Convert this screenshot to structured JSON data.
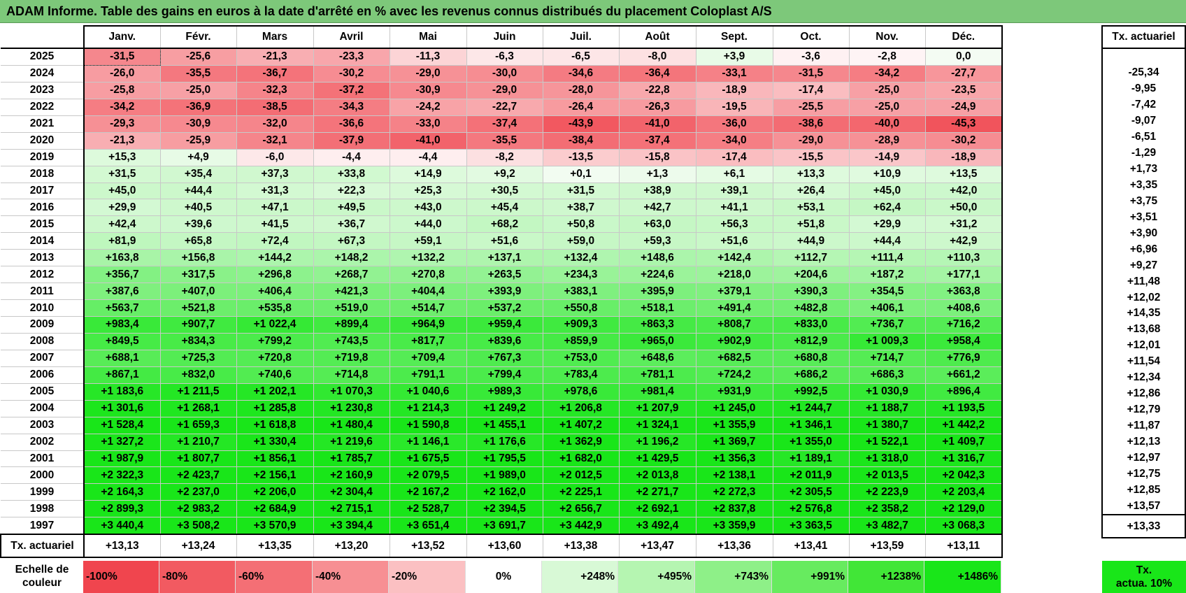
{
  "title": "ADAM Informe. Table des gains en euros à la date d'arrêté en % avec les revenus connus distribués du placement Coloplast A/S",
  "months": [
    "Janv.",
    "Févr.",
    "Mars",
    "Avril",
    "Mai",
    "Juin",
    "Juil.",
    "Août",
    "Sept.",
    "Oct.",
    "Nov.",
    "Déc."
  ],
  "side_header": "Tx. actuariel",
  "rows": [
    {
      "year": "2025",
      "values": [
        "-31,5",
        "-25,6",
        "-21,3",
        "-23,3",
        "-11,3",
        "-6,3",
        "-6,5",
        "-8,0",
        "+3,9",
        "-3,6",
        "-2,8",
        "0,0"
      ],
      "rate": ""
    },
    {
      "year": "2024",
      "values": [
        "-26,0",
        "-35,5",
        "-36,7",
        "-30,2",
        "-29,0",
        "-30,0",
        "-34,6",
        "-36,4",
        "-33,1",
        "-31,5",
        "-34,2",
        "-27,7"
      ],
      "rate": "-25,34"
    },
    {
      "year": "2023",
      "values": [
        "-25,8",
        "-25,0",
        "-32,3",
        "-37,2",
        "-30,9",
        "-29,0",
        "-28,0",
        "-22,8",
        "-18,9",
        "-17,4",
        "-25,0",
        "-23,5"
      ],
      "rate": "-9,95"
    },
    {
      "year": "2022",
      "values": [
        "-34,2",
        "-36,9",
        "-38,5",
        "-34,3",
        "-24,2",
        "-22,7",
        "-26,4",
        "-26,3",
        "-19,5",
        "-25,5",
        "-25,0",
        "-24,9"
      ],
      "rate": "-7,42"
    },
    {
      "year": "2021",
      "values": [
        "-29,3",
        "-30,9",
        "-32,0",
        "-36,6",
        "-33,0",
        "-37,4",
        "-43,9",
        "-41,0",
        "-36,0",
        "-38,6",
        "-40,0",
        "-45,3"
      ],
      "rate": "-9,07"
    },
    {
      "year": "2020",
      "values": [
        "-21,3",
        "-25,9",
        "-32,1",
        "-37,9",
        "-41,0",
        "-35,5",
        "-38,4",
        "-37,4",
        "-34,0",
        "-29,0",
        "-28,9",
        "-30,2"
      ],
      "rate": "-6,51"
    },
    {
      "year": "2019",
      "values": [
        "+15,3",
        "+4,9",
        "-6,0",
        "-4,4",
        "-4,4",
        "-8,2",
        "-13,5",
        "-15,8",
        "-17,4",
        "-15,5",
        "-14,9",
        "-18,9"
      ],
      "rate": "-1,29"
    },
    {
      "year": "2018",
      "values": [
        "+31,5",
        "+35,4",
        "+37,3",
        "+33,8",
        "+14,9",
        "+9,2",
        "+0,1",
        "+1,3",
        "+6,1",
        "+13,3",
        "+10,9",
        "+13,5"
      ],
      "rate": "+1,73"
    },
    {
      "year": "2017",
      "values": [
        "+45,0",
        "+44,4",
        "+31,3",
        "+22,3",
        "+25,3",
        "+30,5",
        "+31,5",
        "+38,9",
        "+39,1",
        "+26,4",
        "+45,0",
        "+42,0"
      ],
      "rate": "+3,35"
    },
    {
      "year": "2016",
      "values": [
        "+29,9",
        "+40,5",
        "+47,1",
        "+49,5",
        "+43,0",
        "+45,4",
        "+38,7",
        "+42,7",
        "+41,1",
        "+53,1",
        "+62,4",
        "+50,0"
      ],
      "rate": "+3,75"
    },
    {
      "year": "2015",
      "values": [
        "+42,4",
        "+39,6",
        "+41,5",
        "+36,7",
        "+44,0",
        "+68,2",
        "+50,8",
        "+63,0",
        "+56,3",
        "+51,8",
        "+29,9",
        "+31,2"
      ],
      "rate": "+3,51"
    },
    {
      "year": "2014",
      "values": [
        "+81,9",
        "+65,8",
        "+72,4",
        "+67,3",
        "+59,1",
        "+51,6",
        "+59,0",
        "+59,3",
        "+51,6",
        "+44,9",
        "+44,4",
        "+42,9"
      ],
      "rate": "+3,90"
    },
    {
      "year": "2013",
      "values": [
        "+163,8",
        "+156,8",
        "+144,2",
        "+148,2",
        "+132,2",
        "+137,1",
        "+132,4",
        "+148,6",
        "+142,4",
        "+112,7",
        "+111,4",
        "+110,3"
      ],
      "rate": "+6,96"
    },
    {
      "year": "2012",
      "values": [
        "+356,7",
        "+317,5",
        "+296,8",
        "+268,7",
        "+270,8",
        "+263,5",
        "+234,3",
        "+224,6",
        "+218,0",
        "+204,6",
        "+187,2",
        "+177,1"
      ],
      "rate": "+9,27"
    },
    {
      "year": "2011",
      "values": [
        "+387,6",
        "+407,0",
        "+406,4",
        "+421,3",
        "+404,4",
        "+393,9",
        "+383,1",
        "+395,9",
        "+379,1",
        "+390,3",
        "+354,5",
        "+363,8"
      ],
      "rate": "+11,48"
    },
    {
      "year": "2010",
      "values": [
        "+563,7",
        "+521,8",
        "+535,8",
        "+519,0",
        "+514,7",
        "+537,2",
        "+550,8",
        "+518,1",
        "+491,4",
        "+482,8",
        "+406,1",
        "+408,6"
      ],
      "rate": "+12,02"
    },
    {
      "year": "2009",
      "values": [
        "+983,4",
        "+907,7",
        "+1 022,4",
        "+899,4",
        "+964,9",
        "+959,4",
        "+909,3",
        "+863,3",
        "+808,7",
        "+833,0",
        "+736,7",
        "+716,2"
      ],
      "rate": "+14,35"
    },
    {
      "year": "2008",
      "values": [
        "+849,5",
        "+834,3",
        "+799,2",
        "+743,5",
        "+817,7",
        "+839,6",
        "+859,9",
        "+965,0",
        "+902,9",
        "+812,9",
        "+1 009,3",
        "+958,4"
      ],
      "rate": "+13,68"
    },
    {
      "year": "2007",
      "values": [
        "+688,1",
        "+725,3",
        "+720,8",
        "+719,8",
        "+709,4",
        "+767,3",
        "+753,0",
        "+648,6",
        "+682,5",
        "+680,8",
        "+714,7",
        "+776,9"
      ],
      "rate": "+12,01"
    },
    {
      "year": "2006",
      "values": [
        "+867,1",
        "+832,0",
        "+740,6",
        "+714,8",
        "+791,1",
        "+799,4",
        "+783,4",
        "+781,1",
        "+724,2",
        "+686,2",
        "+686,3",
        "+661,2"
      ],
      "rate": "+11,54"
    },
    {
      "year": "2005",
      "values": [
        "+1 183,6",
        "+1 211,5",
        "+1 202,1",
        "+1 070,3",
        "+1 040,6",
        "+989,3",
        "+978,6",
        "+981,4",
        "+931,9",
        "+992,5",
        "+1 030,9",
        "+896,4"
      ],
      "rate": "+12,34"
    },
    {
      "year": "2004",
      "values": [
        "+1 301,6",
        "+1 268,1",
        "+1 285,8",
        "+1 230,8",
        "+1 214,3",
        "+1 249,2",
        "+1 206,8",
        "+1 207,9",
        "+1 245,0",
        "+1 244,7",
        "+1 188,7",
        "+1 193,5"
      ],
      "rate": "+12,86"
    },
    {
      "year": "2003",
      "values": [
        "+1 528,4",
        "+1 659,3",
        "+1 618,8",
        "+1 480,4",
        "+1 590,8",
        "+1 455,1",
        "+1 407,2",
        "+1 324,1",
        "+1 355,9",
        "+1 346,1",
        "+1 380,7",
        "+1 442,2"
      ],
      "rate": "+12,79"
    },
    {
      "year": "2002",
      "values": [
        "+1 327,2",
        "+1 210,7",
        "+1 330,4",
        "+1 219,6",
        "+1 146,1",
        "+1 176,6",
        "+1 362,9",
        "+1 196,2",
        "+1 369,7",
        "+1 355,0",
        "+1 522,1",
        "+1 409,7"
      ],
      "rate": "+11,87"
    },
    {
      "year": "2001",
      "values": [
        "+1 987,9",
        "+1 807,7",
        "+1 856,1",
        "+1 785,7",
        "+1 675,5",
        "+1 795,5",
        "+1 682,0",
        "+1 429,5",
        "+1 356,3",
        "+1 189,1",
        "+1 318,0",
        "+1 316,7"
      ],
      "rate": "+12,13"
    },
    {
      "year": "2000",
      "values": [
        "+2 322,3",
        "+2 423,7",
        "+2 156,1",
        "+2 160,9",
        "+2 079,5",
        "+1 989,0",
        "+2 012,5",
        "+2 013,8",
        "+2 138,1",
        "+2 011,9",
        "+2 013,5",
        "+2 042,3"
      ],
      "rate": "+12,97"
    },
    {
      "year": "1999",
      "values": [
        "+2 164,3",
        "+2 237,0",
        "+2 206,0",
        "+2 304,4",
        "+2 167,2",
        "+2 162,0",
        "+2 225,1",
        "+2 271,7",
        "+2 272,3",
        "+2 305,5",
        "+2 223,9",
        "+2 203,4"
      ],
      "rate": "+12,75"
    },
    {
      "year": "1998",
      "values": [
        "+2 899,3",
        "+2 983,2",
        "+2 684,9",
        "+2 715,1",
        "+2 528,7",
        "+2 394,5",
        "+2 656,7",
        "+2 692,1",
        "+2 837,8",
        "+2 576,8",
        "+2 358,2",
        "+2 129,0"
      ],
      "rate": "+12,85"
    },
    {
      "year": "1997",
      "values": [
        "+3 440,4",
        "+3 508,2",
        "+3 570,9",
        "+3 394,4",
        "+3 651,4",
        "+3 691,7",
        "+3 442,9",
        "+3 492,4",
        "+3 359,9",
        "+3 363,5",
        "+3 482,7",
        "+3 068,3"
      ],
      "rate": "+13,57"
    }
  ],
  "footer": {
    "label": "Tx. actuariel",
    "values": [
      "+13,13",
      "+13,24",
      "+13,35",
      "+13,20",
      "+13,52",
      "+13,60",
      "+13,38",
      "+13,47",
      "+13,36",
      "+13,41",
      "+13,59",
      "+13,11"
    ],
    "rate": "+13,33"
  },
  "scale": {
    "label_line1": "Echelle de",
    "label_line2": "couleur",
    "cells": [
      {
        "text": "-100%",
        "color": "#f0454e",
        "kind": "neg"
      },
      {
        "text": "-80%",
        "color": "#f25a61",
        "kind": "neg"
      },
      {
        "text": "-60%",
        "color": "#f46f75",
        "kind": "neg"
      },
      {
        "text": "-40%",
        "color": "#f78f93",
        "kind": "neg"
      },
      {
        "text": "-20%",
        "color": "#fbc0c2",
        "kind": "neg"
      },
      {
        "text": "0%",
        "color": "#ffffff",
        "kind": "zero"
      },
      {
        "text": "+248%",
        "color": "#d8f9d6",
        "kind": "pos"
      },
      {
        "text": "+495%",
        "color": "#b5f5b1",
        "kind": "pos"
      },
      {
        "text": "+743%",
        "color": "#8ef088",
        "kind": "pos"
      },
      {
        "text": "+991%",
        "color": "#67eb5f",
        "kind": "pos"
      },
      {
        "text": "+1238%",
        "color": "#41e637",
        "kind": "pos"
      },
      {
        "text": "+1486%",
        "color": "#19e619",
        "kind": "pos"
      }
    ],
    "end_line1": "Tx.",
    "end_line2": "actua. 10%"
  },
  "colors": {
    "title_bar": "#7dc87a",
    "neg_max": "#f0454e",
    "pos_max": "#19e619",
    "neutral": "#ffffff"
  }
}
